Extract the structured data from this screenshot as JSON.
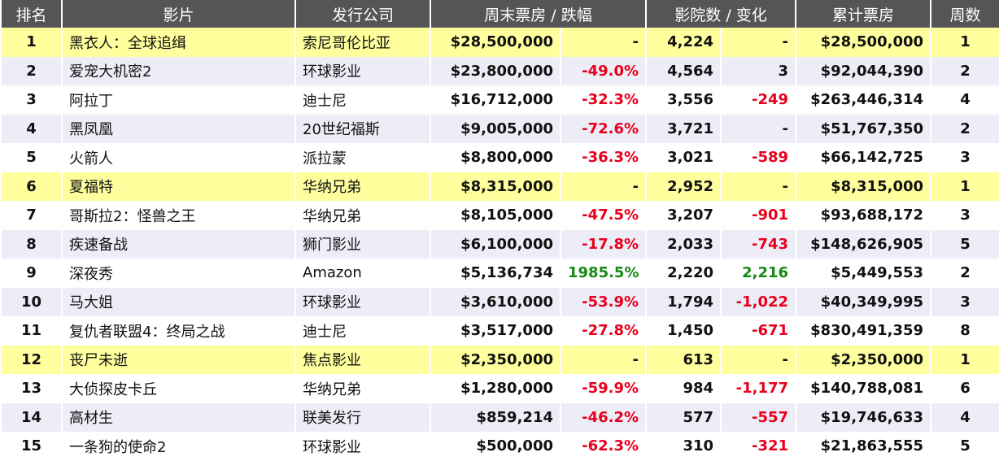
{
  "table": {
    "header": [
      "排名",
      "影片",
      "发行公司",
      "周末票房 / 跌幅",
      "影院数 / 变化",
      "累计票房",
      "周数"
    ],
    "rows": [
      [
        "1",
        "黑衣人：全球追缉",
        "索尼哥伦比亚",
        "$28,500,000",
        "-",
        "4,224",
        "-",
        "$28,500,000",
        "1"
      ],
      [
        "2",
        "爱宠大机密2",
        "环球影业",
        "$23,800,000",
        "-49.0%",
        "4,564",
        "3",
        "$92,044,390",
        "2"
      ],
      [
        "3",
        "阿拉丁",
        "迪士尼",
        "$16,712,000",
        "-32.3%",
        "3,556",
        "-249",
        "$263,446,314",
        "4"
      ],
      [
        "4",
        "黑凤凰",
        "20世纪福斯",
        "$9,005,000",
        "-72.6%",
        "3,721",
        "-",
        "$51,767,350",
        "2"
      ],
      [
        "5",
        "火箭人",
        "派拉蒙",
        "$8,800,000",
        "-36.3%",
        "3,021",
        "-589",
        "$66,142,725",
        "3"
      ],
      [
        "6",
        "夏福特",
        "华纳兄弟",
        "$8,315,000",
        "-",
        "2,952",
        "-",
        "$8,315,000",
        "1"
      ],
      [
        "7",
        "哥斯拉2：怪兽之王",
        "华纳兄弟",
        "$8,105,000",
        "-47.5%",
        "3,207",
        "-901",
        "$93,688,172",
        "3"
      ],
      [
        "8",
        "疾速备战",
        "狮门影业",
        "$6,100,000",
        "-17.8%",
        "2,033",
        "-743",
        "$148,626,905",
        "5"
      ],
      [
        "9",
        "深夜秀",
        "Amazon",
        "$5,136,734",
        "1985.5%",
        "2,220",
        "2,216",
        "$5,449,553",
        "2"
      ],
      [
        "10",
        "马大姐",
        "环球影业",
        "$3,610,000",
        "-53.9%",
        "1,794",
        "-1,022",
        "$40,349,995",
        "3"
      ],
      [
        "11",
        "复仇者联盟4：终局之战",
        "迪士尼",
        "$3,517,000",
        "-27.8%",
        "1,450",
        "-671",
        "$830,491,359",
        "8"
      ],
      [
        "12",
        "丧尸未逝",
        "焦点影业",
        "$2,350,000",
        "-",
        "613",
        "-",
        "$2,350,000",
        "1"
      ],
      [
        "13",
        "大侦探皮卡丘",
        "华纳兄弟",
        "$1,280,000",
        "-59.9%",
        "984",
        "-1,177",
        "$140,788,081",
        "6"
      ],
      [
        "14",
        "高材生",
        "联美发行",
        "$859,214",
        "-46.2%",
        "577",
        "-557",
        "$19,746,633",
        "4"
      ],
      [
        "15",
        "一条狗的使命2",
        "环球影业",
        "$500,000",
        "-62.3%",
        "310",
        "-321",
        "$21,863,555",
        "5"
      ]
    ]
  }
}
